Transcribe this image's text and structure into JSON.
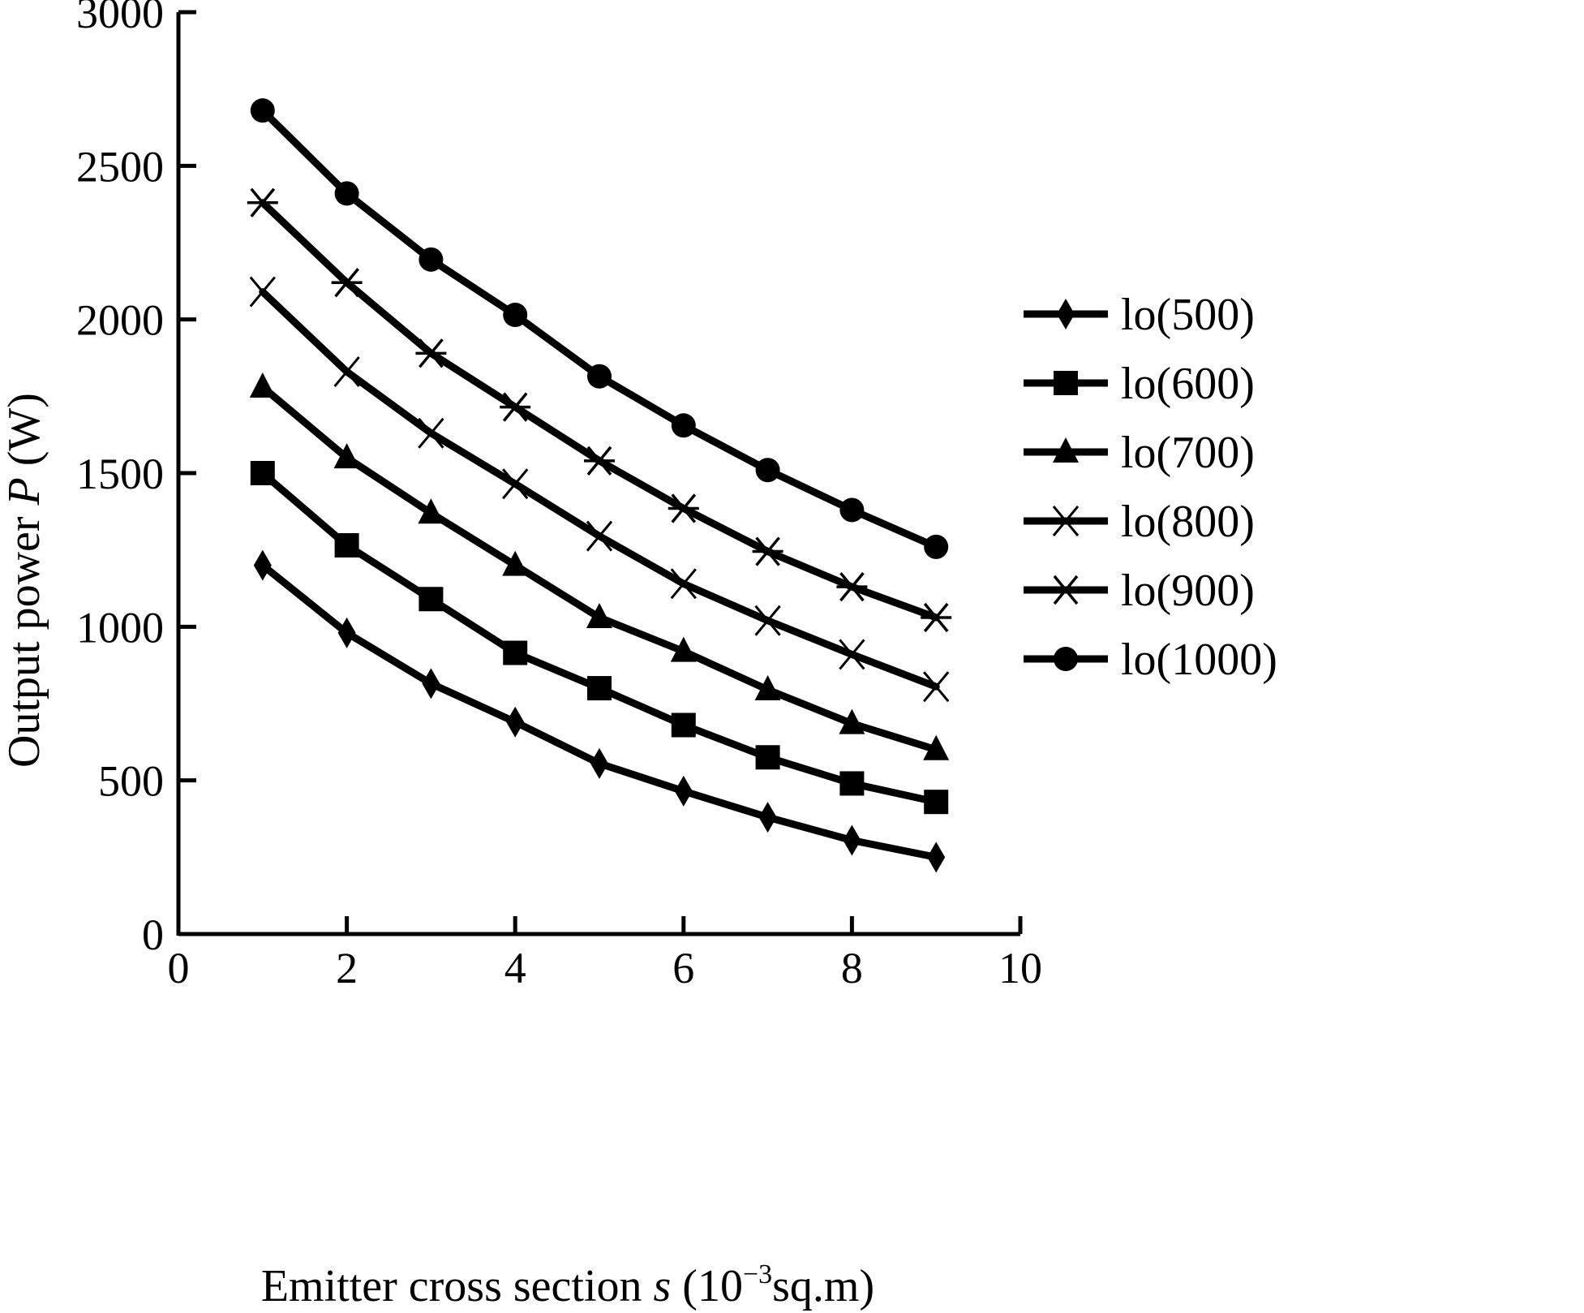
{
  "chart_data": {
    "type": "line",
    "title": "",
    "xlabel": {
      "prefix": "Emitter cross section ",
      "var": "s",
      "unit_pre": " (10",
      "unit_sup": "−3",
      "unit_post": "sq.m)"
    },
    "ylabel": {
      "prefix": "Output power ",
      "var": "P",
      "unit": " (W)"
    },
    "xlim": [
      0,
      10
    ],
    "ylim": [
      0,
      3000
    ],
    "xticks": [
      0,
      2,
      4,
      6,
      8,
      10
    ],
    "yticks": [
      0,
      500,
      1000,
      1500,
      2000,
      2500,
      3000
    ],
    "grid": false,
    "legend_position": "right",
    "x": [
      1,
      2,
      3,
      4,
      5,
      6,
      7,
      8,
      9
    ],
    "series": [
      {
        "name": "lo(500)",
        "marker": "diamond",
        "values": [
          1200,
          980,
          815,
          690,
          555,
          465,
          380,
          305,
          250
        ]
      },
      {
        "name": "lo(600)",
        "marker": "square",
        "values": [
          1500,
          1265,
          1090,
          915,
          800,
          680,
          575,
          490,
          430
        ]
      },
      {
        "name": "lo(700)",
        "marker": "triangle",
        "values": [
          1780,
          1550,
          1370,
          1200,
          1030,
          920,
          795,
          685,
          600
        ]
      },
      {
        "name": "lo(800)",
        "marker": "x",
        "values": [
          2090,
          1830,
          1630,
          1465,
          1295,
          1140,
          1020,
          910,
          805
        ]
      },
      {
        "name": "lo(900)",
        "marker": "asterisk",
        "values": [
          2380,
          2120,
          1890,
          1715,
          1540,
          1385,
          1245,
          1130,
          1030
        ]
      },
      {
        "name": "lo(1000)",
        "marker": "circle",
        "values": [
          2680,
          2410,
          2195,
          2015,
          1815,
          1655,
          1510,
          1380,
          1260
        ]
      }
    ]
  }
}
